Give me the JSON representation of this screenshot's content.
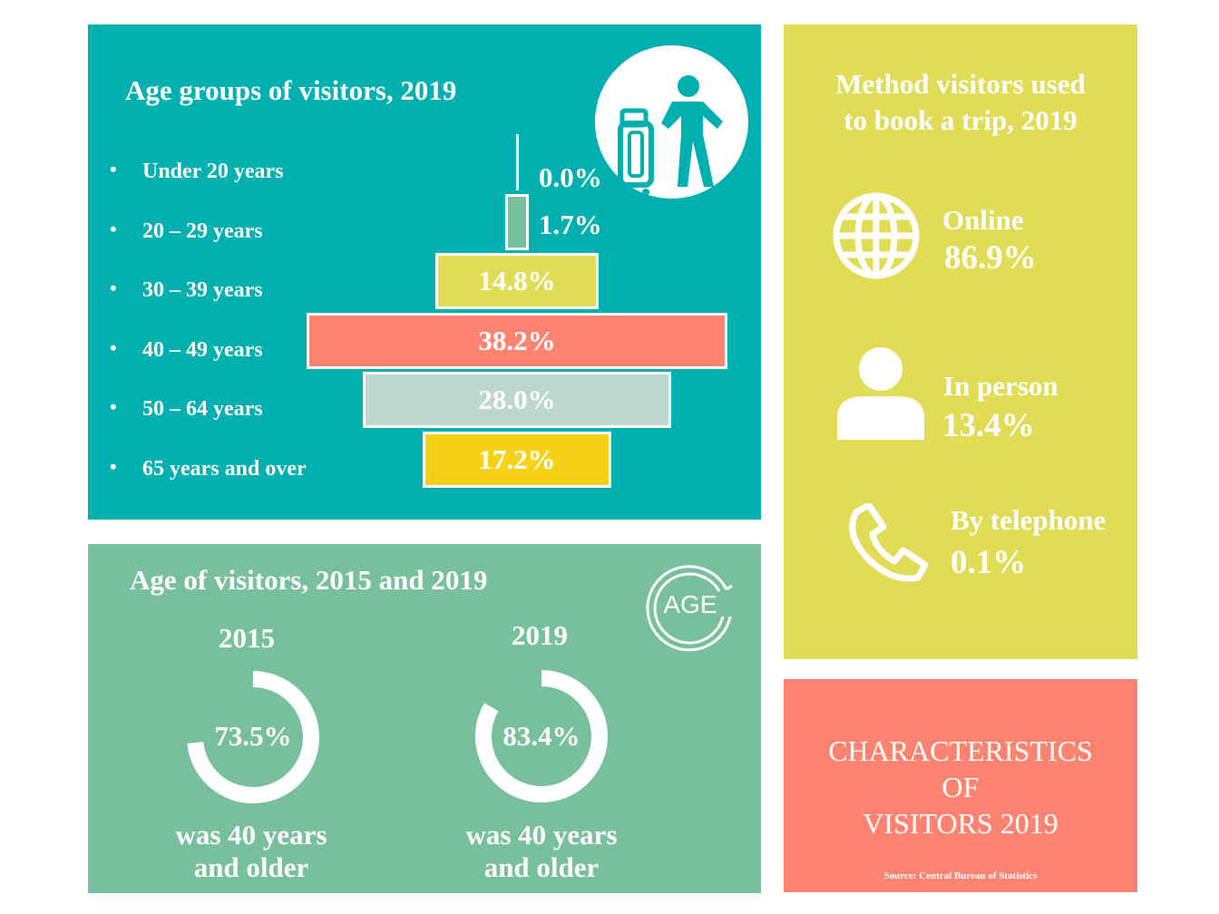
{
  "age_groups": {
    "title": "Age groups of visitors, 2019",
    "icon": "traveler-with-luggage-icon"
  },
  "age_compare": {
    "title": "Age of visitors, 2015 and 2019",
    "icon": "age-cycle-icon",
    "icon_text": "AGE",
    "items": [
      {
        "year": "2015",
        "value": "73.5%",
        "caption1": "was 40 years",
        "caption2": "and older"
      },
      {
        "year": "2019",
        "value": "83.4%",
        "caption1": "was 40 years",
        "caption2": "and older"
      }
    ]
  },
  "booking": {
    "title1": "Method visitors used",
    "title2": "to book a trip, 2019",
    "items": [
      {
        "label": "Online",
        "value": "86.9%",
        "icon": "globe-icon"
      },
      {
        "label": "In person",
        "value": "13.4%",
        "icon": "person-icon"
      },
      {
        "label": "By telephone",
        "value": "0.1%",
        "icon": "telephone-icon"
      }
    ]
  },
  "banner": {
    "line1": "CHARACTERISTICS",
    "line2": "OF",
    "line3": "VISITORS 2019",
    "source": "Source: Central Bureau of Statistics"
  },
  "chart_data": [
    {
      "type": "bar",
      "title": "Age groups of visitors, 2019",
      "orientation": "horizontal-funnel",
      "categories": [
        "Under 20 years",
        "20 – 29 years",
        "30 – 39 years",
        "40 – 49 years",
        "50 – 64 years",
        "65 years and over"
      ],
      "values": [
        0.0,
        1.7,
        14.8,
        38.2,
        28.0,
        17.2
      ],
      "labels": [
        "0.0%",
        "1.7%",
        "14.8%",
        "38.2%",
        "28.0%",
        "17.2%"
      ],
      "colors": [
        "#ffffff",
        "#78bf9b",
        "#e1dc55",
        "#ff8371",
        "#bcd7d0",
        "#f7d117"
      ]
    },
    {
      "type": "pie",
      "title": "Age of visitors, 2015 and 2019",
      "categories": [
        "2015",
        "2019"
      ],
      "values": [
        73.5,
        83.4
      ],
      "unit": "% 40 years and older"
    }
  ]
}
